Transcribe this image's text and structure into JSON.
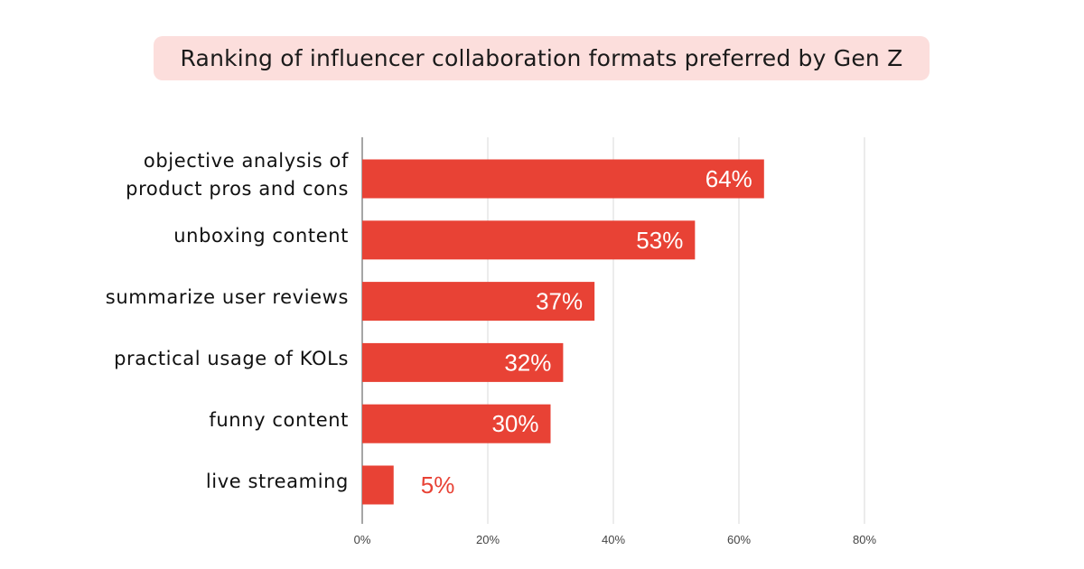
{
  "chart_data": {
    "type": "bar",
    "orientation": "horizontal",
    "title": "Ranking of influencer collaboration formats preferred by Gen Z",
    "categories": [
      "objective analysis of\nproduct pros and cons",
      "unboxing content",
      "summarize user reviews",
      "practical usage of KOLs",
      "funny content",
      "live streaming"
    ],
    "values": [
      64,
      53,
      37,
      32,
      30,
      5
    ],
    "data_labels": [
      "64%",
      "53%",
      "37%",
      "32%",
      "30%",
      "5%"
    ],
    "xlim": [
      0,
      80
    ],
    "x_ticks": [
      0,
      20,
      40,
      60,
      80
    ],
    "x_tick_labels": [
      "0%",
      "20%",
      "40%",
      "60%",
      "80%"
    ],
    "xlabel": "",
    "ylabel": "",
    "grid": "vertical",
    "legend": "none",
    "colors": {
      "bar": "#e84235",
      "label_inside": "#ffffff",
      "label_outside": "#e84235",
      "title_background": "#fcdedc",
      "grid": "#d9d9d9",
      "axis": "#888888"
    }
  }
}
